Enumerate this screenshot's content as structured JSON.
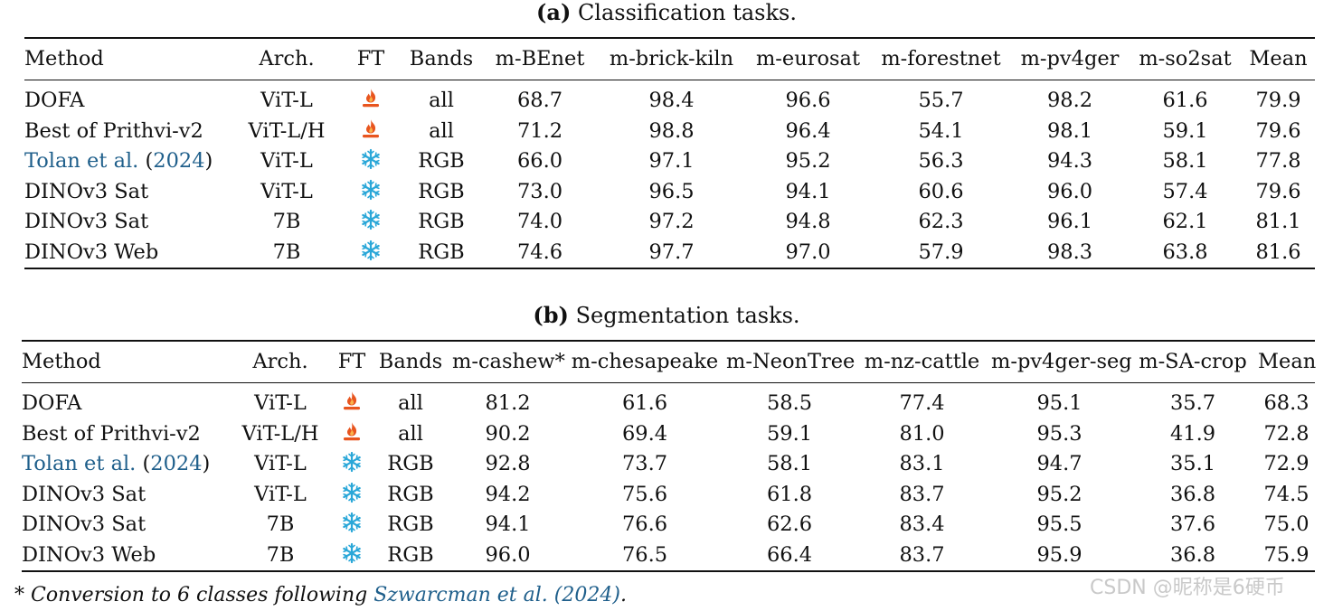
{
  "fonts": "serif",
  "icons": {
    "fine_tuned": "fire-icon",
    "frozen": "snowflake-icon",
    "fire_color": "#e8551f",
    "snowflake_color": "#2aa7d8"
  },
  "link_color": "#1f5f8b",
  "table_a": {
    "caption_label": "(a)",
    "caption_text": "Classification tasks.",
    "headers": [
      "Method",
      "Arch.",
      "FT",
      "Bands",
      "m-BEnet",
      "m-brick-kiln",
      "m-eurosat",
      "m-forestnet",
      "m-pv4ger",
      "m-so2sat",
      "Mean"
    ],
    "rows": [
      {
        "method": "DOFA",
        "arch": "ViT-L",
        "ft": "fire-icon",
        "bands": "all",
        "values": [
          "68.7",
          "98.4",
          "96.6",
          "55.7",
          "98.2",
          "61.6",
          "79.9"
        ],
        "bold": []
      },
      {
        "method": "Best of Prithvi-v2",
        "arch": "ViT-L/H",
        "ft": "fire-icon",
        "bands": "all",
        "values": [
          "71.2",
          "98.8",
          "96.4",
          "54.1",
          "98.1",
          "59.1",
          "79.6"
        ],
        "bold": [
          1
        ]
      },
      {
        "method": "Tolan et al. (2024)",
        "method_link": true,
        "arch": "ViT-L",
        "ft": "snowflake-icon",
        "bands": "RGB",
        "values": [
          "66.0",
          "97.1",
          "95.2",
          "56.3",
          "94.3",
          "58.1",
          "77.8"
        ],
        "bold": []
      },
      {
        "method": "DINOv3 Sat",
        "arch": "ViT-L",
        "ft": "snowflake-icon",
        "bands": "RGB",
        "values": [
          "73.0",
          "96.5",
          "94.1",
          "60.6",
          "96.0",
          "57.4",
          "79.6"
        ],
        "bold": []
      },
      {
        "method": "DINOv3 Sat",
        "arch": "7B",
        "ft": "snowflake-icon",
        "bands": "RGB",
        "values": [
          "74.0",
          "97.2",
          "94.8",
          "62.3",
          "96.1",
          "62.1",
          "81.1"
        ],
        "bold": [
          3
        ]
      },
      {
        "method": "DINOv3 Web",
        "arch": "7B",
        "ft": "snowflake-icon",
        "bands": "RGB",
        "values": [
          "74.6",
          "97.7",
          "97.0",
          "57.9",
          "98.3",
          "63.8",
          "81.6"
        ],
        "bold": [
          0,
          2,
          4,
          5,
          6
        ]
      }
    ]
  },
  "table_b": {
    "caption_label": "(b)",
    "caption_text": "Segmentation tasks.",
    "headers": [
      "Method",
      "Arch.",
      "FT",
      "Bands",
      "m-cashew*",
      "m-chesapeake",
      "m-NeonTree",
      "m-nz-cattle",
      "m-pv4ger-seg",
      "m-SA-crop",
      "Mean"
    ],
    "rows": [
      {
        "method": "DOFA",
        "arch": "ViT-L",
        "ft": "fire-icon",
        "bands": "all",
        "values": [
          "81.2",
          "61.6",
          "58.5",
          "77.4",
          "95.1",
          "35.7",
          "68.3"
        ],
        "bold": []
      },
      {
        "method": "Best of Prithvi-v2",
        "arch": "ViT-L/H",
        "ft": "fire-icon",
        "bands": "all",
        "values": [
          "90.2",
          "69.4",
          "59.1",
          "81.0",
          "95.3",
          "41.9",
          "72.8"
        ],
        "bold": [
          5
        ]
      },
      {
        "method": "Tolan et al. (2024)",
        "method_link": true,
        "arch": "ViT-L",
        "ft": "snowflake-icon",
        "bands": "RGB",
        "values": [
          "92.8",
          "73.7",
          "58.1",
          "83.1",
          "94.7",
          "35.1",
          "72.9"
        ],
        "bold": []
      },
      {
        "method": "DINOv3 Sat",
        "arch": "ViT-L",
        "ft": "snowflake-icon",
        "bands": "RGB",
        "values": [
          "94.2",
          "75.6",
          "61.8",
          "83.7",
          "95.2",
          "36.8",
          "74.5"
        ],
        "bold": [
          3
        ]
      },
      {
        "method": "DINOv3 Sat",
        "arch": "7B",
        "ft": "snowflake-icon",
        "bands": "RGB",
        "values": [
          "94.1",
          "76.6",
          "62.6",
          "83.4",
          "95.5",
          "37.6",
          "75.0"
        ],
        "bold": [
          1
        ]
      },
      {
        "method": "DINOv3 Web",
        "arch": "7B",
        "ft": "snowflake-icon",
        "bands": "RGB",
        "values": [
          "96.0",
          "76.5",
          "66.4",
          "83.7",
          "95.9",
          "36.8",
          "75.9"
        ],
        "bold": [
          0,
          2,
          3,
          4,
          6
        ]
      }
    ]
  },
  "footnote": {
    "mark": "*",
    "text_before": "Conversion to 6 classes following ",
    "link": "Szwarcman et al. (2024)",
    "text_after": "."
  },
  "watermark": "CSDN @昵称是6硬币"
}
